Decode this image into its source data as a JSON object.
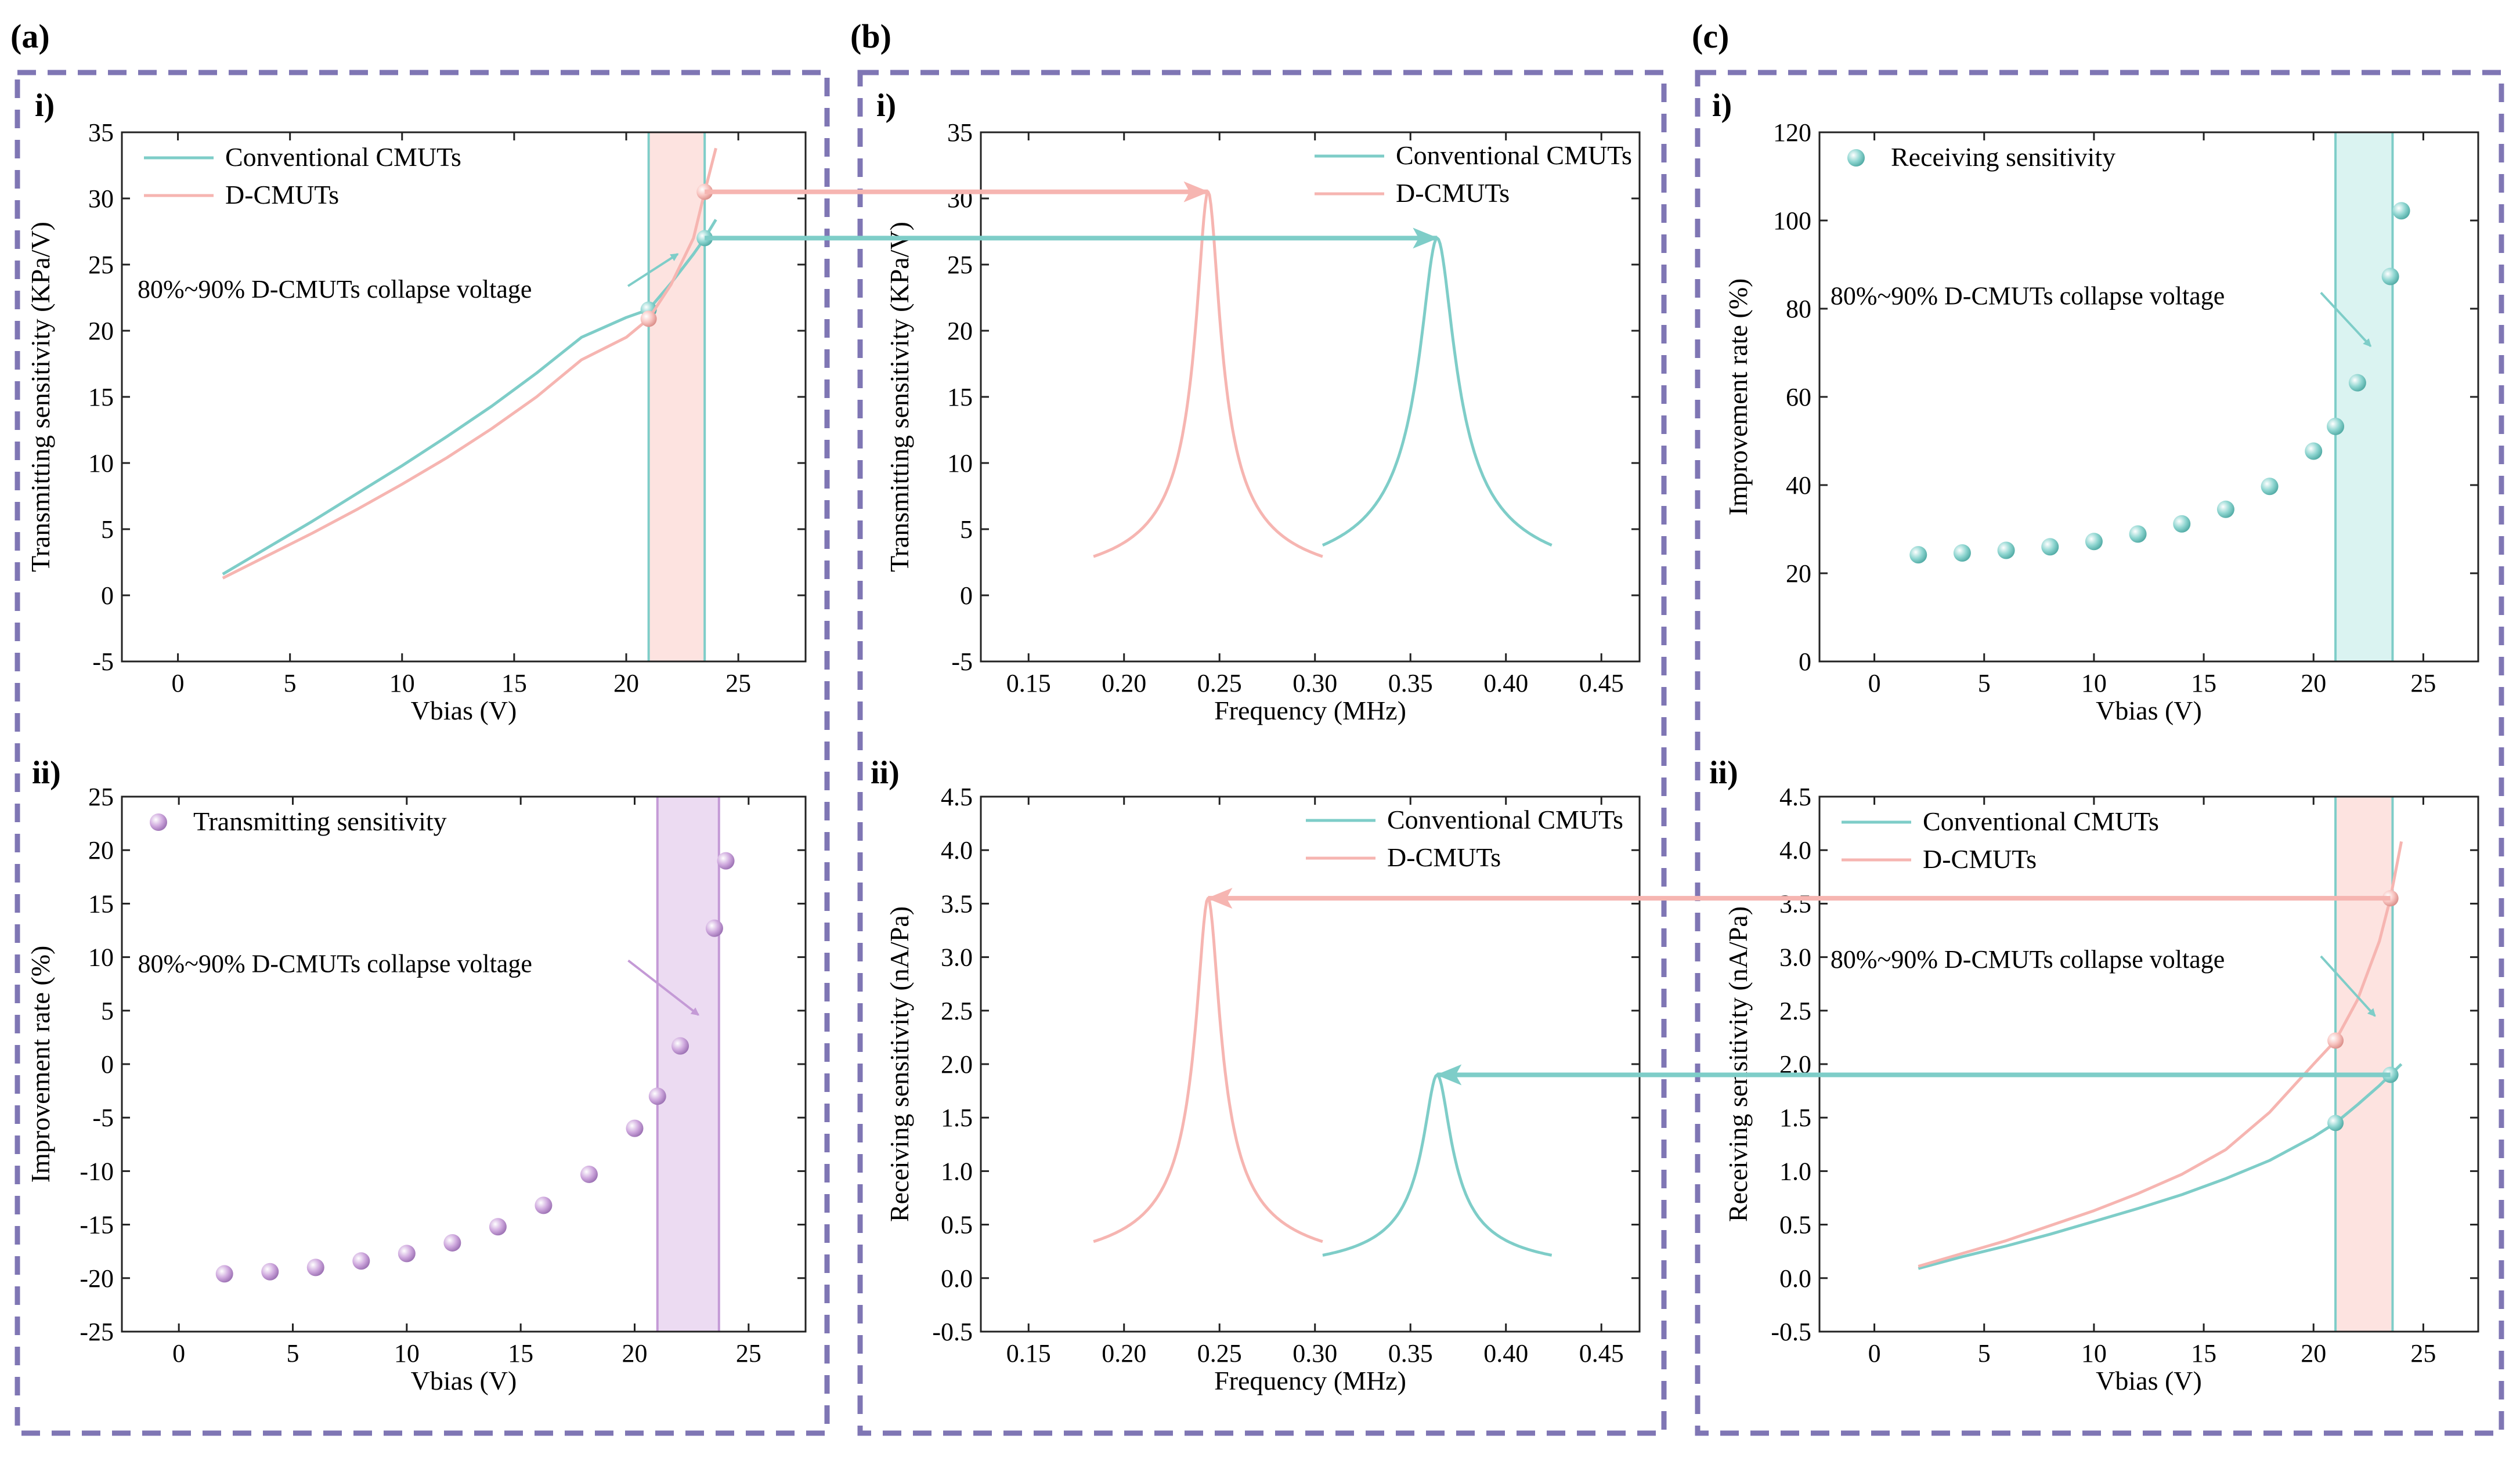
{
  "colors": {
    "teal": "#7ecdc8",
    "pink": "#f6b5b1",
    "purple": "#c49ad6",
    "band_pink": "#fde0dd",
    "band_teal": "#d6f2f0",
    "band_purple": "#ead7f1",
    "frame": "#7f76b4"
  },
  "panel_labels": [
    "(a)",
    "(b)",
    "(c)"
  ],
  "chart_data": [
    {
      "id": "a-i",
      "type": "line",
      "sublabel": "i)",
      "xlabel": "Vbias (V)",
      "ylabel": "Transmitting sensitivity (KPa/V)",
      "xlim": [
        -2.5,
        28
      ],
      "ylim": [
        -5,
        35
      ],
      "xticks": [
        0,
        5,
        10,
        15,
        20,
        25
      ],
      "yticks": [
        -5,
        0,
        5,
        10,
        15,
        20,
        25,
        30,
        35
      ],
      "band": {
        "x0": 21,
        "x1": 23.5,
        "color": "band_pink",
        "edge": "teal"
      },
      "legend": [
        {
          "label": "Conventional CMUTs",
          "color": "teal",
          "kind": "line"
        },
        {
          "label": "D-CMUTs",
          "color": "pink",
          "kind": "line"
        }
      ],
      "series": [
        {
          "name": "Conventional CMUTs",
          "color": "teal",
          "x": [
            2,
            4,
            6,
            8,
            10,
            12,
            14,
            16,
            18,
            20,
            21,
            22,
            23,
            23.5,
            24
          ],
          "y": [
            1.6,
            3.6,
            5.6,
            7.7,
            9.8,
            12.0,
            14.3,
            16.8,
            19.5,
            21.0,
            21.6,
            23.6,
            25.8,
            27.0,
            28.4
          ],
          "markers": [
            [
              21,
              21.6
            ],
            [
              23.5,
              27.0
            ]
          ]
        },
        {
          "name": "D-CMUTs",
          "color": "pink",
          "x": [
            2,
            4,
            6,
            8,
            10,
            12,
            14,
            16,
            18,
            20,
            21,
            22,
            23,
            23.5,
            24
          ],
          "y": [
            1.3,
            3.0,
            4.7,
            6.5,
            8.4,
            10.4,
            12.6,
            15.0,
            17.8,
            19.5,
            20.9,
            23.5,
            27.0,
            30.5,
            33.8
          ],
          "markers": [
            [
              21,
              20.9
            ],
            [
              23.5,
              30.5
            ]
          ]
        }
      ],
      "annotation": {
        "text": "80%~90% D-CMUTs collapse voltage",
        "anchor": [
          -1.8,
          22.5
        ],
        "arrow_to": [
          22.3,
          25.8
        ],
        "color": "teal"
      }
    },
    {
      "id": "a-ii",
      "type": "scatter",
      "sublabel": "ii)",
      "xlabel": "Vbias (V)",
      "ylabel": "Improvement rate (%)",
      "xlim": [
        -2.5,
        27.5
      ],
      "ylim": [
        -25,
        25
      ],
      "xticks": [
        0,
        5,
        10,
        15,
        20,
        25
      ],
      "yticks": [
        -25,
        -20,
        -15,
        -10,
        -5,
        0,
        5,
        10,
        15,
        20,
        25
      ],
      "band": {
        "x0": 21,
        "x1": 23.7,
        "color": "band_purple",
        "edge": "purple"
      },
      "legend": [
        {
          "label": "Transmitting sensitivity",
          "color": "purple",
          "kind": "dot"
        }
      ],
      "series": [
        {
          "name": "Transmitting sensitivity",
          "color": "purple",
          "kind": "dot",
          "x": [
            2,
            4,
            6,
            8,
            10,
            12,
            14,
            16,
            18,
            20,
            21,
            22,
            23.5,
            24
          ],
          "y": [
            -19.6,
            -19.4,
            -19.0,
            -18.4,
            -17.7,
            -16.7,
            -15.2,
            -13.2,
            -10.3,
            -6.0,
            -3.0,
            1.7,
            12.7,
            19.0
          ]
        }
      ],
      "annotation": {
        "text": "80%~90% D-CMUTs collapse voltage",
        "anchor": [
          -1.8,
          8.6
        ],
        "arrow_to": [
          22.8,
          4.6
        ],
        "color": "purple"
      }
    },
    {
      "id": "b-i",
      "type": "line",
      "sublabel": "i)",
      "xlabel": "Frequency (MHz)",
      "ylabel": "Transmitting sensitivity (KPa/V)",
      "xlim": [
        0.125,
        0.47
      ],
      "ylim": [
        -5,
        35
      ],
      "xticks": [
        0.15,
        0.2,
        0.25,
        0.3,
        0.35,
        0.4,
        0.45
      ],
      "yticks": [
        -5,
        0,
        5,
        10,
        15,
        20,
        25,
        30,
        35
      ],
      "legend": [
        {
          "label": "Conventional CMUTs",
          "color": "teal",
          "kind": "line"
        },
        {
          "label": "D-CMUTs",
          "color": "pink",
          "kind": "line"
        }
      ],
      "series": [
        {
          "name": "Conventional CMUTs",
          "color": "teal",
          "kind": "peak",
          "f0": 0.364,
          "peak": 27.0,
          "gamma": 0.0085,
          "range": [
            0.304,
            0.424
          ]
        },
        {
          "name": "D-CMUTs",
          "color": "pink",
          "kind": "peak",
          "f0": 0.244,
          "peak": 30.5,
          "gamma": 0.0058,
          "range": [
            0.184,
            0.304
          ]
        }
      ]
    },
    {
      "id": "b-ii",
      "type": "line",
      "sublabel": "ii)",
      "xlabel": "Frequency (MHz)",
      "ylabel": "Receiving sensitivity (nA/Pa)",
      "xlim": [
        0.125,
        0.47
      ],
      "ylim": [
        -0.5,
        4.5
      ],
      "xticks": [
        0.15,
        0.2,
        0.25,
        0.3,
        0.35,
        0.4,
        0.45
      ],
      "yticks": [
        -0.5,
        0.0,
        0.5,
        1.0,
        1.5,
        2.0,
        2.5,
        3.0,
        3.5,
        4.0,
        4.5
      ],
      "legend": [
        {
          "label": "Conventional CMUTs",
          "color": "teal",
          "kind": "line"
        },
        {
          "label": "D-CMUTs",
          "color": "pink",
          "kind": "line"
        }
      ],
      "series": [
        {
          "name": "Conventional CMUTs",
          "color": "teal",
          "kind": "peak",
          "f0": 0.364,
          "peak": 1.9,
          "gamma": 0.0068,
          "range": [
            0.304,
            0.424
          ]
        },
        {
          "name": "D-CMUTs",
          "color": "pink",
          "kind": "peak",
          "f0": 0.244,
          "peak": 3.55,
          "gamma": 0.0058,
          "range": [
            0.184,
            0.304
          ]
        }
      ]
    },
    {
      "id": "c-i",
      "type": "scatter",
      "sublabel": "i)",
      "xlabel": "Vbias (V)",
      "ylabel": "Improvement rate (%)",
      "xlim": [
        -2.5,
        27.5
      ],
      "ylim": [
        0,
        120
      ],
      "xticks": [
        0,
        5,
        10,
        15,
        20,
        25
      ],
      "yticks": [
        0,
        20,
        40,
        60,
        80,
        100,
        120
      ],
      "band": {
        "x0": 21,
        "x1": 23.6,
        "color": "band_teal",
        "edge": "teal"
      },
      "legend": [
        {
          "label": "Receiving sensitivity",
          "color": "teal",
          "kind": "dot"
        }
      ],
      "series": [
        {
          "name": "Receiving sensitivity",
          "color": "teal",
          "kind": "dot",
          "x": [
            2,
            4,
            6,
            8,
            10,
            12,
            14,
            16,
            18,
            20,
            21,
            22,
            23.5,
            24
          ],
          "y": [
            24.2,
            24.6,
            25.2,
            26.0,
            27.2,
            28.9,
            31.2,
            34.5,
            39.7,
            47.7,
            53.3,
            63.2,
            87.3,
            102.2
          ]
        }
      ],
      "annotation": {
        "text": "80%~90% D-CMUTs collapse voltage",
        "anchor": [
          -2.0,
          81
        ],
        "arrow_to": [
          22.6,
          71.5
        ],
        "color": "teal"
      }
    },
    {
      "id": "c-ii",
      "type": "line",
      "sublabel": "ii)",
      "xlabel": "Vbias (V)",
      "ylabel": "Receiving sensitivity (nA/Pa)",
      "xlim": [
        -2.5,
        27.5
      ],
      "ylim": [
        -0.5,
        4.5
      ],
      "xticks": [
        0,
        5,
        10,
        15,
        20,
        25
      ],
      "yticks": [
        -0.5,
        0.0,
        0.5,
        1.0,
        1.5,
        2.0,
        2.5,
        3.0,
        3.5,
        4.0,
        4.5
      ],
      "band": {
        "x0": 21,
        "x1": 23.6,
        "color": "band_pink",
        "edge": "teal"
      },
      "legend": [
        {
          "label": "Conventional CMUTs",
          "color": "teal",
          "kind": "line"
        },
        {
          "label": "D-CMUTs",
          "color": "pink",
          "kind": "line"
        }
      ],
      "series": [
        {
          "name": "Conventional CMUTs",
          "color": "teal",
          "x": [
            2,
            4,
            6,
            8,
            10,
            12,
            14,
            16,
            18,
            20,
            21,
            22,
            23,
            23.5,
            24
          ],
          "y": [
            0.09,
            0.2,
            0.3,
            0.41,
            0.53,
            0.65,
            0.78,
            0.93,
            1.1,
            1.32,
            1.45,
            1.62,
            1.8,
            1.9,
            2.0
          ],
          "markers": [
            [
              21,
              1.45
            ],
            [
              23.5,
              1.9
            ]
          ]
        },
        {
          "name": "D-CMUTs",
          "color": "pink",
          "x": [
            2,
            4,
            6,
            8,
            10,
            12,
            14,
            16,
            18,
            20,
            21,
            22,
            23,
            23.5,
            24
          ],
          "y": [
            0.11,
            0.23,
            0.35,
            0.49,
            0.63,
            0.79,
            0.97,
            1.2,
            1.55,
            2.0,
            2.22,
            2.6,
            3.15,
            3.55,
            4.08
          ],
          "markers": [
            [
              21,
              2.22
            ],
            [
              23.5,
              3.55
            ]
          ]
        }
      ],
      "annotation": {
        "text": "80%~90% D-CMUTs collapse voltage",
        "anchor": [
          -2.0,
          2.9
        ],
        "arrow_to": [
          22.8,
          2.45
        ],
        "color": "teal"
      }
    }
  ]
}
